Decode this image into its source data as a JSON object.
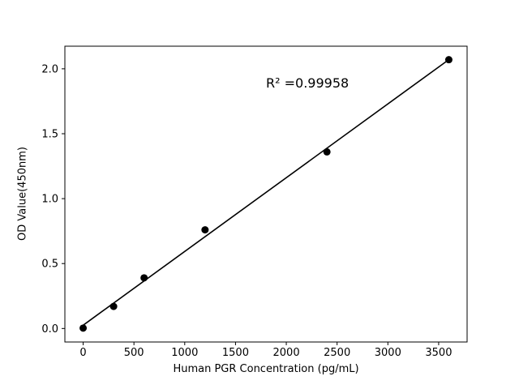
{
  "chart_data": {
    "type": "scatter",
    "title": "",
    "xlabel": "Human PGR Concentration (pg/mL)",
    "ylabel": "OD Value(450nm)",
    "x": [
      0,
      300,
      600,
      1200,
      2400,
      3600
    ],
    "y": [
      0.003,
      0.17,
      0.39,
      0.76,
      1.36,
      2.07
    ],
    "fit_line": {
      "type": "linear_regression",
      "r_squared": 0.99958
    },
    "annotation": {
      "text": "R² =0.99958",
      "x": 1800,
      "y": 1.95
    },
    "xlim": [
      -180,
      3780
    ],
    "ylim": [
      -0.104,
      2.174
    ],
    "xticks": {
      "values": [
        0,
        500,
        1000,
        1500,
        2000,
        2500,
        3000,
        3500
      ],
      "labels": [
        "0",
        "500",
        "1000",
        "1500",
        "2000",
        "2500",
        "3000",
        "3500"
      ]
    },
    "yticks": {
      "values": [
        0.0,
        0.5,
        1.0,
        1.5,
        2.0
      ],
      "labels": [
        "0.0",
        "0.5",
        "1.0",
        "1.5",
        "2.0"
      ]
    },
    "grid": false,
    "legend": "none",
    "colors": {
      "marker": "#000000",
      "line": "#000000",
      "axes": "#000000",
      "background": "#ffffff"
    }
  }
}
